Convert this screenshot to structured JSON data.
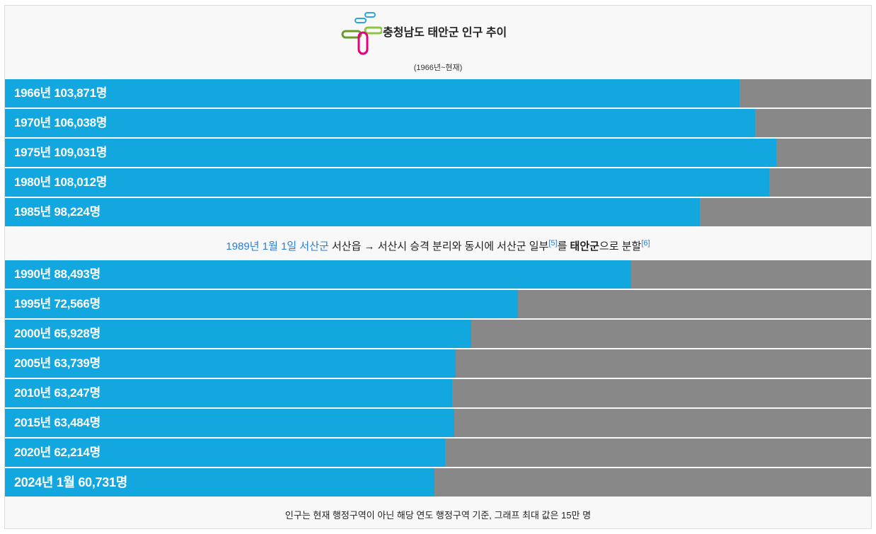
{
  "title": "충청남도 태안군 인구 추이",
  "subtitle": "(1966년~현재)",
  "note": {
    "date_link": "1989년 1월 1일",
    "county_link": "서산군",
    "text_1": " 서산읍 → 서산시 승격 분리와 동시에 서산군 일부",
    "ref_5": "[5]",
    "text_2": "를 ",
    "bold": "태안군",
    "text_3": "으로 분할",
    "ref_6": "[6]"
  },
  "footer": "인구는 현재 행정구역이 아닌 해당 연도 행정구역 기준, 그래프 최대 값은 15만 명",
  "colors": {
    "bar": "#12a8df",
    "track": "#888888",
    "link": "#2a7ed8"
  },
  "chart_data": {
    "type": "bar",
    "orientation": "horizontal",
    "title": "충청남도 태안군 인구 추이",
    "subtitle": "(1966년~현재)",
    "xlim": [
      0,
      150000
    ],
    "categories": [
      "1966년",
      "1970년",
      "1975년",
      "1980년",
      "1985년",
      "1990년",
      "1995년",
      "2000년",
      "2005년",
      "2010년",
      "2015년",
      "2020년",
      "2024년 1월"
    ],
    "values": [
      103871,
      106038,
      109031,
      108012,
      98224,
      88493,
      72566,
      65928,
      63739,
      63247,
      63484,
      62214,
      60731
    ],
    "labels": [
      "1966년 103,871명",
      "1970년 106,038명",
      "1975년 109,031명",
      "1980년 108,012명",
      "1985년 98,224명",
      "1990년 88,493명",
      "1995년 72,566명",
      "2000년 65,928명",
      "2005년 63,739명",
      "2010년 63,247명",
      "2015년 63,484명",
      "2020년 62,214명",
      "2024년 1월 60,731명"
    ]
  }
}
